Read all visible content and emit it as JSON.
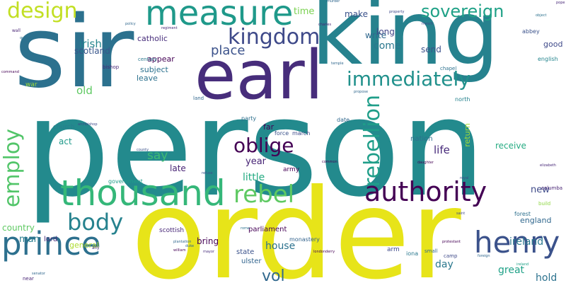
{
  "words": [
    {
      "text": "person",
      "color": "#238a8d",
      "vertical": false
    },
    {
      "text": "order",
      "color": "#e7e419",
      "vertical": false
    },
    {
      "text": "king",
      "color": "#26828e",
      "vertical": false
    },
    {
      "text": "sir",
      "color": "#2c718e",
      "vertical": false
    },
    {
      "text": "earl",
      "color": "#472d7b",
      "vertical": false
    },
    {
      "text": "measure",
      "color": "#1f998a",
      "vertical": false
    },
    {
      "text": "thousand",
      "color": "#35b779",
      "vertical": false
    },
    {
      "text": "prince",
      "color": "#2d708e",
      "vertical": false
    },
    {
      "text": "henry",
      "color": "#3b528b",
      "vertical": false
    },
    {
      "text": "authority",
      "color": "#440154",
      "vertical": false
    },
    {
      "text": "kingdom",
      "color": "#3e4989",
      "vertical": false
    },
    {
      "text": "immediately",
      "color": "#21918c",
      "vertical": false
    },
    {
      "text": "rebel",
      "color": "#5ec962",
      "vertical": false
    },
    {
      "text": "oblige",
      "color": "#440154",
      "vertical": false
    },
    {
      "text": "body",
      "color": "#26828e",
      "vertical": false
    },
    {
      "text": "sovereign",
      "color": "#1fa187",
      "vertical": false
    },
    {
      "text": "design",
      "color": "#c2df23",
      "vertical": false
    },
    {
      "text": "rebellion",
      "color": "#1f9e89",
      "vertical": true
    },
    {
      "text": "employ",
      "color": "#52c569",
      "vertical": true
    },
    {
      "text": "vol",
      "color": "#31688e",
      "vertical": false
    },
    {
      "text": "place",
      "color": "#3b528b",
      "vertical": false
    },
    {
      "text": "ireland",
      "color": "#2a788e",
      "vertical": false
    },
    {
      "text": "irish",
      "color": "#25858e",
      "vertical": false
    },
    {
      "text": "scotland",
      "color": "#39568c",
      "vertical": false
    },
    {
      "text": "come",
      "color": "#2a778e",
      "vertical": false
    },
    {
      "text": "say",
      "color": "#3fbc73",
      "vertical": false
    },
    {
      "text": "life",
      "color": "#472a7a",
      "vertical": false
    },
    {
      "text": "year",
      "color": "#482576",
      "vertical": false
    },
    {
      "text": "little",
      "color": "#25ab82",
      "vertical": false
    },
    {
      "text": "house",
      "color": "#2c728e",
      "vertical": false
    },
    {
      "text": "man",
      "color": "#287d8e",
      "vertical": false
    },
    {
      "text": "late",
      "color": "#482475",
      "vertical": false
    },
    {
      "text": "new",
      "color": "#3e4a89",
      "vertical": false
    },
    {
      "text": "time",
      "color": "#7ad151",
      "vertical": false
    },
    {
      "text": "make",
      "color": "#3b528b",
      "vertical": false
    },
    {
      "text": "long",
      "color": "#414487",
      "vertical": false
    },
    {
      "text": "write",
      "color": "#31688e",
      "vertical": false
    },
    {
      "text": "send",
      "color": "#3b528b",
      "vertical": false
    },
    {
      "text": "good",
      "color": "#3e4989",
      "vertical": false
    },
    {
      "text": "old",
      "color": "#5ec962",
      "vertical": false
    },
    {
      "text": "act",
      "color": "#1f9a8a",
      "vertical": false
    },
    {
      "text": "receive",
      "color": "#25ab82",
      "vertical": false
    },
    {
      "text": "country",
      "color": "#5ec962",
      "vertical": false
    },
    {
      "text": "lord",
      "color": "#472a7a",
      "vertical": false
    },
    {
      "text": "bring",
      "color": "#440154",
      "vertical": false
    },
    {
      "text": "great",
      "color": "#1fa187",
      "vertical": false
    },
    {
      "text": "hold",
      "color": "#2c728e",
      "vertical": false
    },
    {
      "text": "day",
      "color": "#2a788e",
      "vertical": false
    },
    {
      "text": "return",
      "color": "#a5db36",
      "vertical": true
    },
    {
      "text": "appear",
      "color": "#440154",
      "vertical": false
    },
    {
      "text": "subject",
      "color": "#2c718e",
      "vertical": false
    },
    {
      "text": "leave",
      "color": "#2c718e",
      "vertical": false
    },
    {
      "text": "catholic",
      "color": "#472d7b",
      "vertical": false
    },
    {
      "text": "general",
      "color": "#addc30",
      "vertical": false
    },
    {
      "text": "england",
      "color": "#31688e",
      "vertical": false
    },
    {
      "text": "forest",
      "color": "#2d708e",
      "vertical": false
    },
    {
      "text": "scottish",
      "color": "#482878",
      "vertical": false
    },
    {
      "text": "parliament",
      "color": "#440154",
      "vertical": false
    },
    {
      "text": "state",
      "color": "#3b528b",
      "vertical": false
    },
    {
      "text": "ulster",
      "color": "#32658e",
      "vertical": false
    },
    {
      "text": "monastery",
      "color": "#33638d",
      "vertical": false
    },
    {
      "text": "arm",
      "color": "#3e4989",
      "vertical": false
    },
    {
      "text": "iona",
      "color": "#2a788e",
      "vertical": false
    },
    {
      "text": "nation",
      "color": "#2d708e",
      "vertical": false
    },
    {
      "text": "far",
      "color": "#440154",
      "vertical": false
    },
    {
      "text": "force",
      "color": "#3b528b",
      "vertical": false
    },
    {
      "text": "march",
      "color": "#3e4989",
      "vertical": false
    },
    {
      "text": "date",
      "color": "#31688e",
      "vertical": false
    },
    {
      "text": "army",
      "color": "#440154",
      "vertical": false
    },
    {
      "text": "government",
      "color": "#1f9e89",
      "vertical": false
    },
    {
      "text": "church",
      "color": "#287d8e",
      "vertical": false
    },
    {
      "text": "party",
      "color": "#2d708e",
      "vertical": false
    },
    {
      "text": "north",
      "color": "#26828e",
      "vertical": false
    },
    {
      "text": "century",
      "color": "#2a788e",
      "vertical": false
    },
    {
      "text": "bishop",
      "color": "#482878",
      "vertical": false
    },
    {
      "text": "land",
      "color": "#31688e",
      "vertical": false
    },
    {
      "text": "war",
      "color": "#a0da39",
      "vertical": false
    },
    {
      "text": "chapel",
      "color": "#2c718e",
      "vertical": false
    },
    {
      "text": "abbey",
      "color": "#3b528b",
      "vertical": false
    },
    {
      "text": "english",
      "color": "#25858e",
      "vertical": false
    },
    {
      "text": "columba",
      "color": "#482475",
      "vertical": false
    },
    {
      "text": "camp",
      "color": "#3e4989",
      "vertical": false
    },
    {
      "text": "small",
      "color": "#31688e",
      "vertical": false
    },
    {
      "text": "build",
      "color": "#8fd744",
      "vertical": false
    },
    {
      "text": "wall",
      "color": "#482475",
      "vertical": false
    },
    {
      "text": "near",
      "color": "#482475",
      "vertical": false
    },
    {
      "text": "ally",
      "color": "#46337e",
      "vertical": false
    },
    {
      "text": "policy",
      "color": "#31688e",
      "vertical": false
    },
    {
      "text": "regiment",
      "color": "#482878",
      "vertical": false
    },
    {
      "text": "charles",
      "color": "#482878",
      "vertical": false
    },
    {
      "text": "french",
      "color": "#3e4989",
      "vertical": false
    },
    {
      "text": "object",
      "color": "#2c718e",
      "vertical": false
    },
    {
      "text": "command",
      "color": "#440154",
      "vertical": false
    },
    {
      "text": "queen",
      "color": "#2c718e",
      "vertical": false
    },
    {
      "text": "property",
      "color": "#3e4989",
      "vertical": false
    },
    {
      "text": "propose",
      "color": "#31688e",
      "vertical": false
    },
    {
      "text": "temple",
      "color": "#31688e",
      "vertical": false
    },
    {
      "text": "royal",
      "color": "#3e4989",
      "vertical": false
    },
    {
      "text": "daughter",
      "color": "#440154",
      "vertical": false
    },
    {
      "text": "elizabeth",
      "color": "#482878",
      "vertical": false
    },
    {
      "text": "common",
      "color": "#440154",
      "vertical": false
    },
    {
      "text": "plantation",
      "color": "#31688e",
      "vertical": false
    },
    {
      "text": "william",
      "color": "#440154",
      "vertical": false
    },
    {
      "text": "mayor",
      "color": "#472d7b",
      "vertical": false
    },
    {
      "text": "londonderry",
      "color": "#440154",
      "vertical": false
    },
    {
      "text": "protestant",
      "color": "#440154",
      "vertical": false
    },
    {
      "text": "foreign",
      "color": "#31688e",
      "vertical": false
    },
    {
      "text": "senator",
      "color": "#31688e",
      "vertical": false
    },
    {
      "text": "archbishop",
      "color": "#3e4989",
      "vertical": false
    },
    {
      "text": "county",
      "color": "#3b528b",
      "vertical": false
    },
    {
      "text": "refuse",
      "color": "#3b528b",
      "vertical": false
    },
    {
      "text": "duke",
      "color": "#31688e",
      "vertical": false
    },
    {
      "text": "ireland",
      "color": "#1fa187",
      "vertical": false
    },
    {
      "text": "rome",
      "color": "#2c718e",
      "vertical": false
    },
    {
      "text": "pope",
      "color": "#482878",
      "vertical": false
    },
    {
      "text": "saint",
      "color": "#3e4989",
      "vertical": false
    },
    {
      "text": "murder",
      "color": "#31688e",
      "vertical": false
    }
  ]
}
